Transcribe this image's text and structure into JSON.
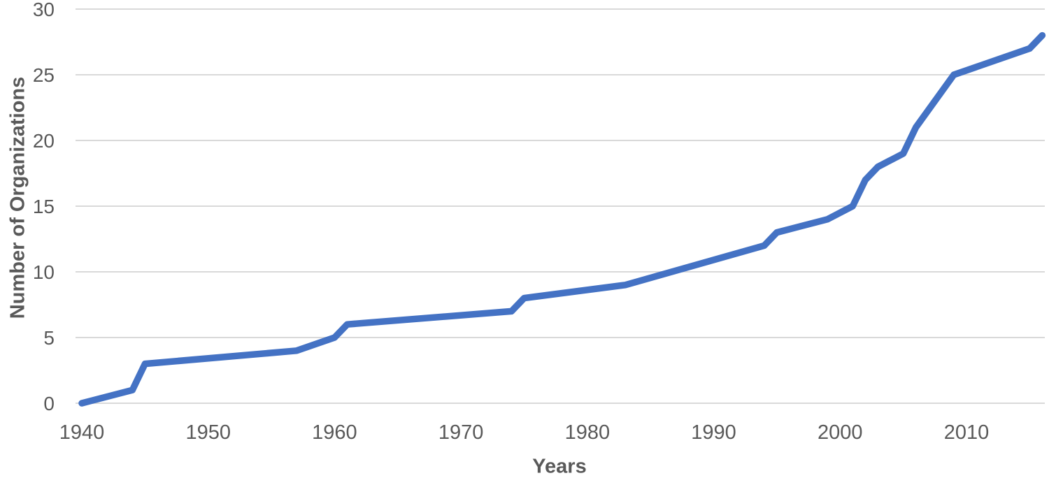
{
  "chart_data": {
    "type": "line",
    "title": "",
    "xlabel": "Years",
    "ylabel": "Number of Organizations",
    "series": [
      {
        "name": "Number of Organizations",
        "color": "#4472C4",
        "points": [
          [
            1940,
            0
          ],
          [
            1944,
            1
          ],
          [
            1945,
            3
          ],
          [
            1957,
            4
          ],
          [
            1960,
            5
          ],
          [
            1961,
            6
          ],
          [
            1974,
            7
          ],
          [
            1975,
            8
          ],
          [
            1983,
            9
          ],
          [
            1994,
            12
          ],
          [
            1995,
            13
          ],
          [
            1999,
            14
          ],
          [
            2001,
            15
          ],
          [
            2002,
            17
          ],
          [
            2003,
            18
          ],
          [
            2005,
            19
          ],
          [
            2006,
            21
          ],
          [
            2009,
            25
          ],
          [
            2015,
            27
          ],
          [
            2016,
            28
          ]
        ]
      }
    ],
    "x_ticks": [
      "1940",
      "1950",
      "1960",
      "1970",
      "1980",
      "1990",
      "2000",
      "2010"
    ],
    "y_ticks": [
      "0",
      "5",
      "10",
      "15",
      "20",
      "25",
      "30"
    ],
    "xlim": [
      1939.5,
      2016.2
    ],
    "ylim": [
      0,
      30
    ],
    "grid": "horizontal",
    "legend": "none",
    "colors": {
      "line": "#4472C4",
      "gridline": "#D9D9D9",
      "tick_text": "#595959",
      "axis_title_text": "#595959",
      "background": "#FFFFFF"
    }
  }
}
